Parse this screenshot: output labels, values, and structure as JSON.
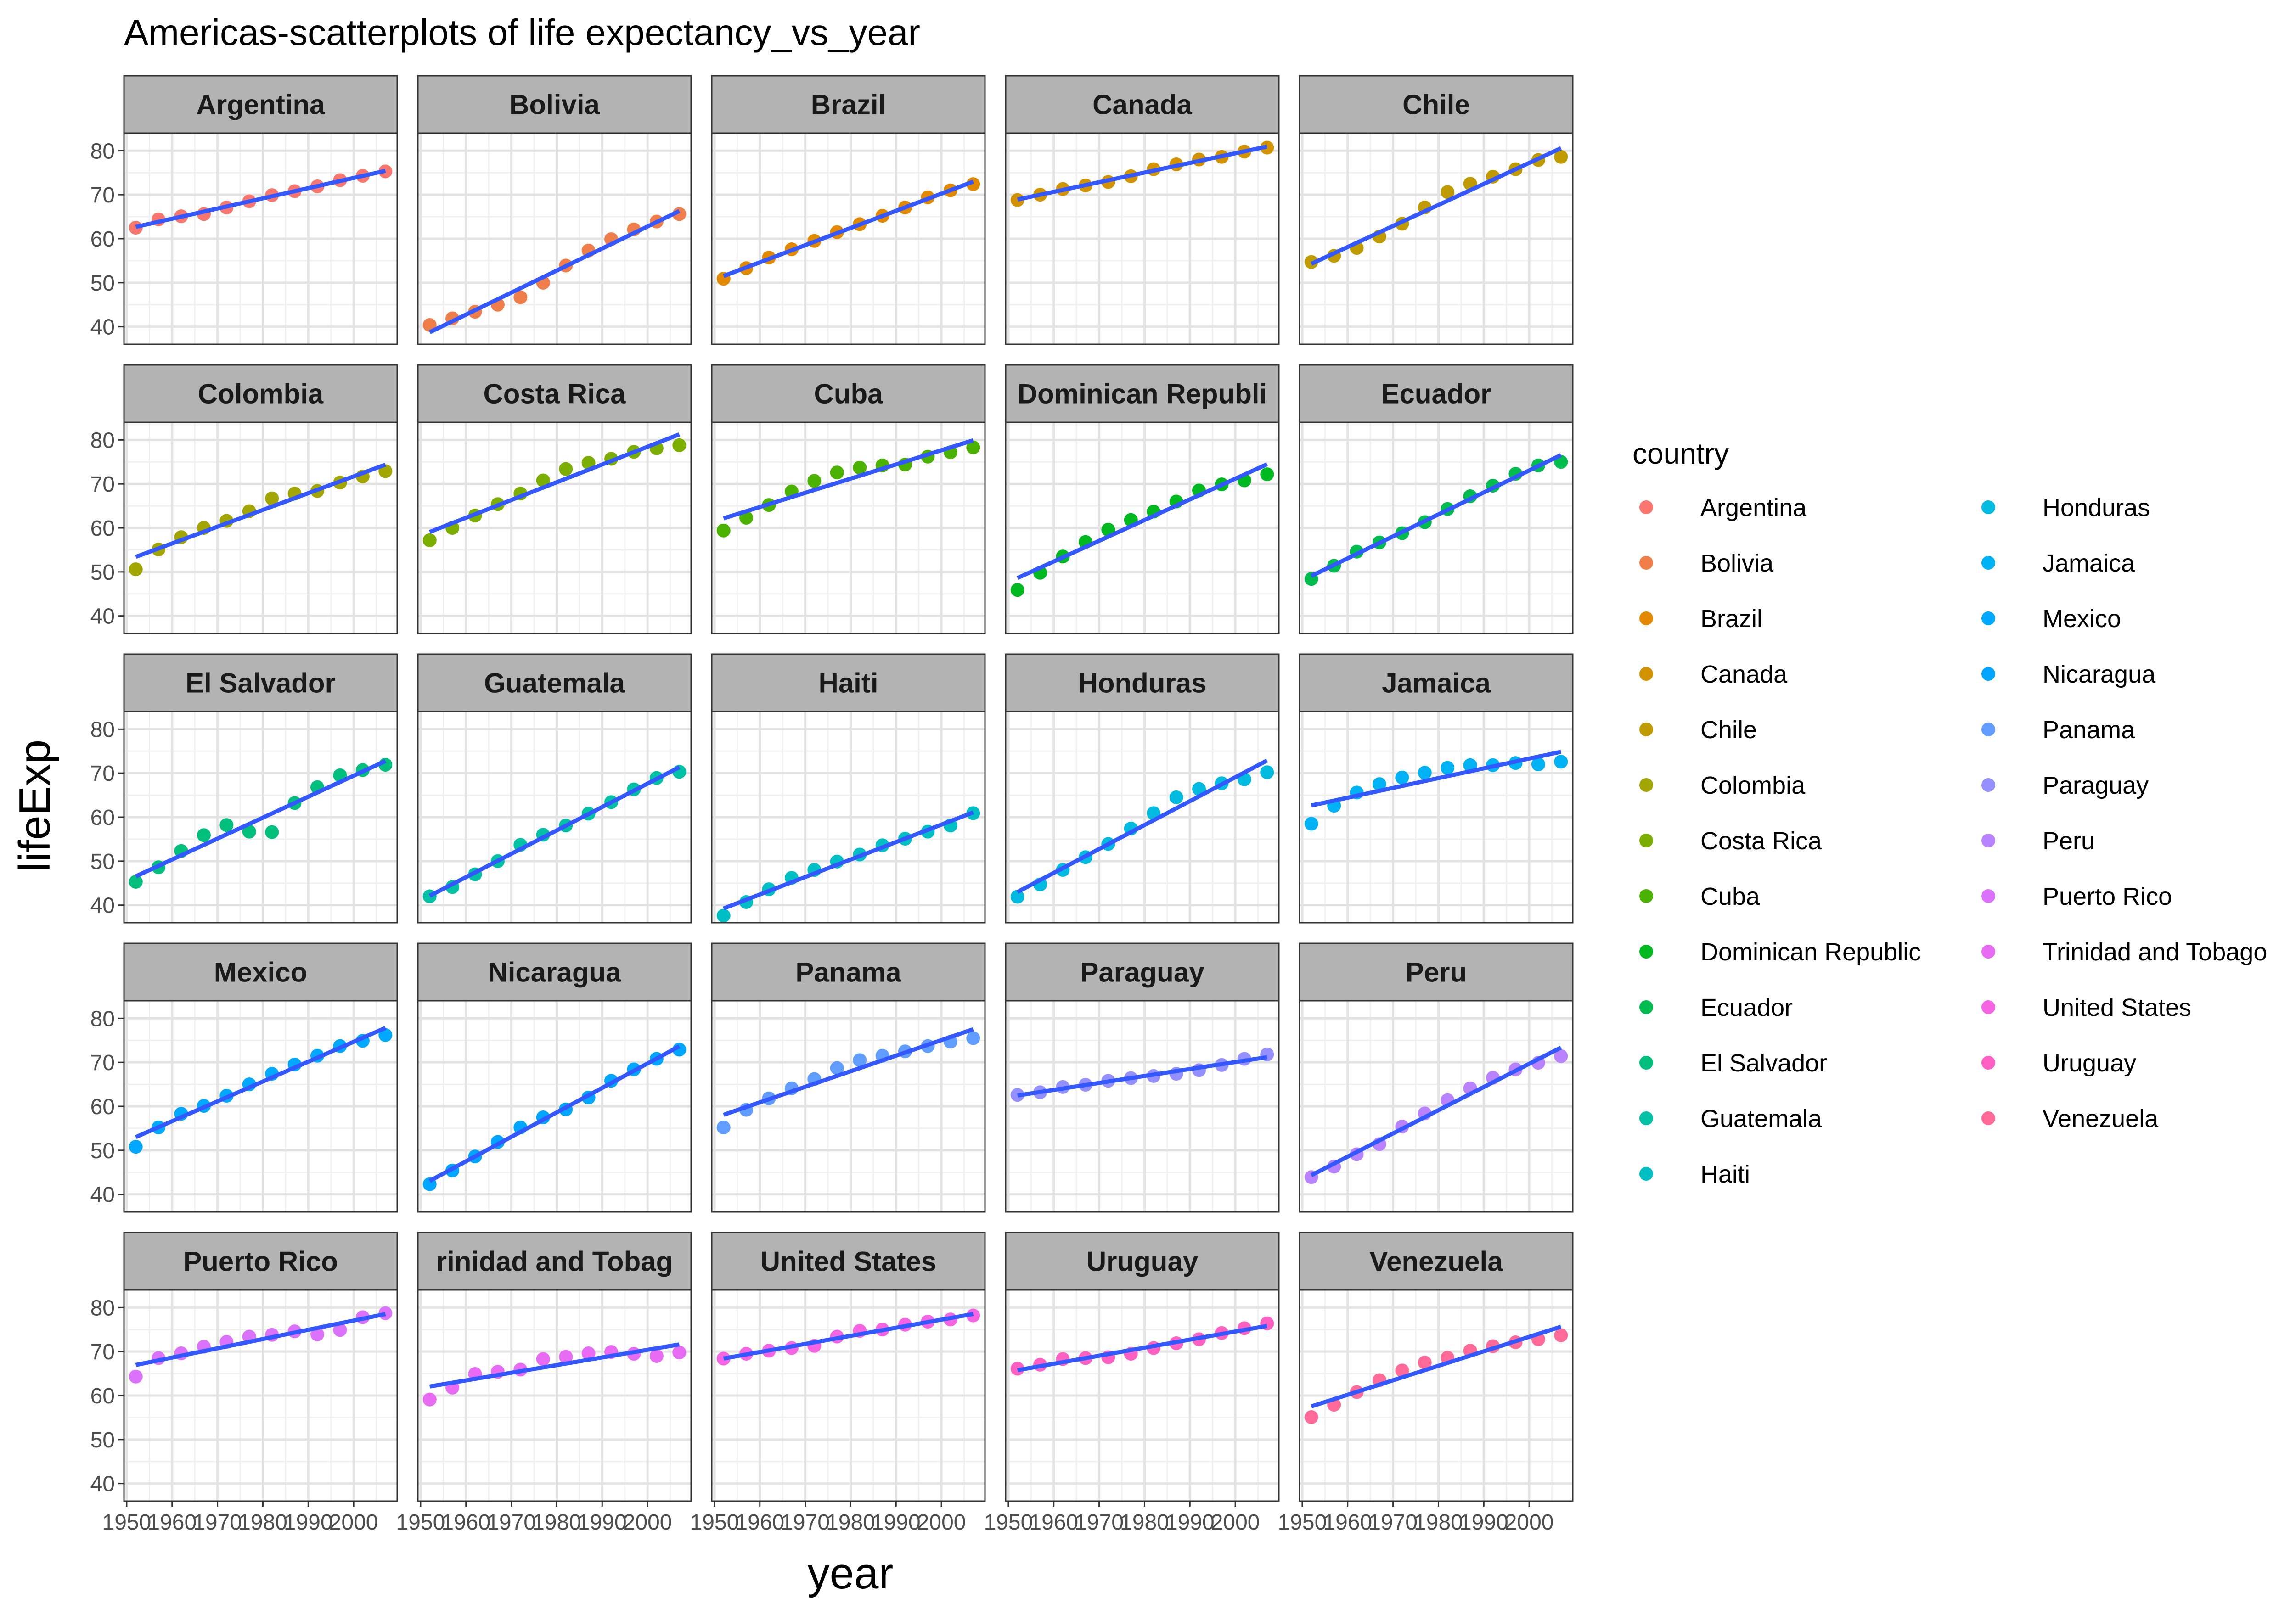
{
  "chart_data": {
    "type": "scatter",
    "title": "Americas-scatterplots of life expectancy_vs_year",
    "xlabel": "year",
    "ylabel": "lifeExp",
    "facet_by": "country",
    "facet_layout": {
      "ncol": 5,
      "nrow": 5
    },
    "xlim": [
      1952,
      2007
    ],
    "ylim": [
      36,
      84
    ],
    "x_ticks": [
      1950,
      1960,
      1970,
      1980,
      1990,
      2000
    ],
    "x_tick_labels": [
      "1950",
      "1960",
      "1970",
      "1980",
      "1990",
      "2000"
    ],
    "y_ticks": [
      40,
      50,
      60,
      70,
      80
    ],
    "y_tick_labels": [
      "40",
      "50",
      "60",
      "70",
      "80"
    ],
    "grid": true,
    "trend_line": {
      "method": "linear",
      "color": "#3358ff"
    },
    "legend": {
      "title": "country",
      "position": "right",
      "ncol": 2
    },
    "years": [
      1952,
      1957,
      1962,
      1967,
      1972,
      1977,
      1982,
      1987,
      1992,
      1997,
      2002,
      2007
    ],
    "series": [
      {
        "name": "Argentina",
        "strip_label": "Argentina",
        "color": "#F8766D",
        "values": [
          62.5,
          64.4,
          65.1,
          65.6,
          67.1,
          68.5,
          69.9,
          70.8,
          71.9,
          73.3,
          74.3,
          75.3
        ]
      },
      {
        "name": "Bolivia",
        "strip_label": "Bolivia",
        "color": "#F07E4A",
        "values": [
          40.4,
          41.9,
          43.4,
          45.0,
          46.7,
          50.0,
          53.9,
          57.3,
          59.9,
          62.1,
          63.9,
          65.6
        ]
      },
      {
        "name": "Brazil",
        "strip_label": "Brazil",
        "color": "#E38900",
        "values": [
          50.9,
          53.3,
          55.7,
          57.6,
          59.5,
          61.5,
          63.3,
          65.2,
          67.1,
          69.4,
          71.0,
          72.4
        ]
      },
      {
        "name": "Canada",
        "strip_label": "Canada",
        "color": "#D39200",
        "values": [
          68.8,
          70.0,
          71.3,
          72.1,
          72.9,
          74.2,
          75.8,
          76.9,
          78.0,
          78.6,
          79.8,
          80.7
        ]
      },
      {
        "name": "Chile",
        "strip_label": "Chile",
        "color": "#C09B00",
        "values": [
          54.7,
          56.1,
          57.9,
          60.5,
          63.4,
          67.1,
          70.6,
          72.5,
          74.1,
          75.8,
          77.9,
          78.6
        ]
      },
      {
        "name": "Colombia",
        "strip_label": "Colombia",
        "color": "#A3A500",
        "values": [
          50.6,
          55.1,
          57.9,
          60.0,
          61.6,
          63.8,
          66.7,
          67.8,
          68.4,
          70.3,
          71.7,
          72.9
        ]
      },
      {
        "name": "Costa Rica",
        "strip_label": "Costa Rica",
        "color": "#7CAE00",
        "values": [
          57.2,
          60.0,
          62.8,
          65.4,
          67.8,
          70.8,
          73.4,
          74.8,
          75.7,
          77.3,
          78.1,
          78.8
        ]
      },
      {
        "name": "Cuba",
        "strip_label": "Cuba",
        "color": "#4BB300",
        "values": [
          59.4,
          62.3,
          65.2,
          68.3,
          70.7,
          72.6,
          73.7,
          74.2,
          74.4,
          76.2,
          77.2,
          78.3
        ]
      },
      {
        "name": "Dominican Republic",
        "strip_label": "Dominican Republi",
        "color": "#00B81F",
        "values": [
          45.9,
          49.8,
          53.5,
          56.8,
          59.6,
          61.8,
          63.7,
          66.0,
          68.5,
          69.9,
          70.8,
          72.2
        ]
      },
      {
        "name": "Ecuador",
        "strip_label": "Ecuador",
        "color": "#00BB4E",
        "values": [
          48.4,
          51.4,
          54.6,
          56.7,
          58.8,
          61.3,
          64.3,
          67.2,
          69.6,
          72.3,
          74.2,
          75.0
        ]
      },
      {
        "name": "El Salvador",
        "strip_label": "El Salvador",
        "color": "#00BF7D",
        "values": [
          45.3,
          48.6,
          52.3,
          55.9,
          58.2,
          56.7,
          56.6,
          63.2,
          66.8,
          69.5,
          70.7,
          71.9
        ]
      },
      {
        "name": "Guatemala",
        "strip_label": "Guatemala",
        "color": "#00C1A3",
        "values": [
          42.0,
          44.1,
          47.0,
          50.0,
          53.7,
          56.0,
          58.1,
          60.8,
          63.4,
          66.3,
          68.9,
          70.3
        ]
      },
      {
        "name": "Haiti",
        "strip_label": "Haiti",
        "color": "#00BFC4",
        "values": [
          37.6,
          40.7,
          43.6,
          46.2,
          48.0,
          49.9,
          51.5,
          53.6,
          55.1,
          56.7,
          58.1,
          60.9
        ]
      },
      {
        "name": "Honduras",
        "strip_label": "Honduras",
        "color": "#00BAE0",
        "values": [
          41.9,
          44.7,
          48.0,
          50.9,
          53.9,
          57.4,
          60.9,
          64.5,
          66.4,
          67.7,
          68.6,
          70.2
        ]
      },
      {
        "name": "Jamaica",
        "strip_label": "Jamaica",
        "color": "#00B2F3",
        "values": [
          58.5,
          62.6,
          65.6,
          67.5,
          69.0,
          70.1,
          71.2,
          71.8,
          71.8,
          72.3,
          72.0,
          72.6
        ]
      },
      {
        "name": "Mexico",
        "strip_label": "Mexico",
        "color": "#00A9FF",
        "values": [
          50.8,
          55.2,
          58.3,
          60.1,
          62.4,
          65.0,
          67.4,
          69.5,
          71.5,
          73.7,
          74.9,
          76.2
        ]
      },
      {
        "name": "Nicaragua",
        "strip_label": "Nicaragua",
        "color": "#00A5FF",
        "values": [
          42.3,
          45.4,
          48.6,
          51.9,
          55.2,
          57.5,
          59.3,
          62.0,
          65.8,
          68.4,
          70.8,
          72.9
        ]
      },
      {
        "name": "Panama",
        "strip_label": "Panama",
        "color": "#619CFF",
        "values": [
          55.2,
          59.2,
          61.8,
          64.1,
          66.2,
          68.7,
          70.5,
          71.5,
          72.5,
          73.7,
          74.7,
          75.5
        ]
      },
      {
        "name": "Paraguay",
        "strip_label": "Paraguay",
        "color": "#9590FF",
        "values": [
          62.6,
          63.2,
          64.4,
          64.9,
          65.8,
          66.4,
          66.9,
          67.4,
          68.2,
          69.4,
          70.8,
          71.8
        ]
      },
      {
        "name": "Peru",
        "strip_label": "Peru",
        "color": "#B983FF",
        "values": [
          43.9,
          46.3,
          49.1,
          51.4,
          55.4,
          58.4,
          61.4,
          64.1,
          66.5,
          68.4,
          69.9,
          71.4
        ]
      },
      {
        "name": "Puerto Rico",
        "strip_label": "Puerto Rico",
        "color": "#DB72FB",
        "values": [
          64.3,
          68.5,
          69.6,
          71.1,
          72.2,
          73.4,
          73.8,
          74.6,
          73.9,
          74.9,
          77.8,
          78.7
        ]
      },
      {
        "name": "Trinidad and Tobago",
        "strip_label": "rinidad and Tobag",
        "color": "#E76BF3",
        "values": [
          59.1,
          61.8,
          64.9,
          65.4,
          65.9,
          68.3,
          68.8,
          69.6,
          69.9,
          69.5,
          68.98,
          69.8
        ]
      },
      {
        "name": "United States",
        "strip_label": "United States",
        "color": "#F564E3",
        "values": [
          68.4,
          69.5,
          70.2,
          70.8,
          71.3,
          73.4,
          74.7,
          75.0,
          76.1,
          76.8,
          77.3,
          78.2
        ]
      },
      {
        "name": "Uruguay",
        "strip_label": "Uruguay",
        "color": "#FF61C3",
        "values": [
          66.1,
          67.0,
          68.3,
          68.5,
          68.7,
          69.5,
          70.8,
          71.9,
          72.8,
          74.2,
          75.3,
          76.4
        ]
      },
      {
        "name": "Venezuela",
        "strip_label": "Venezuela",
        "color": "#FF6A98",
        "values": [
          55.1,
          57.9,
          60.8,
          63.5,
          65.7,
          67.5,
          68.6,
          70.2,
          71.2,
          72.1,
          72.8,
          73.7
        ]
      }
    ]
  }
}
